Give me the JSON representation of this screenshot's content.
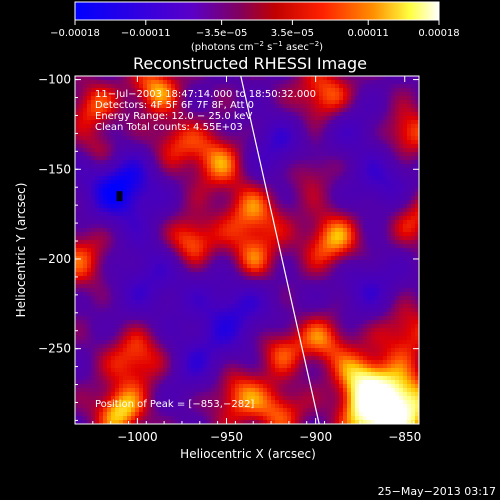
{
  "chart_data": {
    "type": "heatmap",
    "title": "Reconstructed RHESSI Image",
    "xlabel": "Heliocentric X (arcsec)",
    "ylabel": "Heliocentric Y (arcsec)",
    "xlim": [
      -1035,
      -842
    ],
    "ylim": [
      -292,
      -98
    ],
    "x_ticks": [
      -1000,
      -950,
      -900,
      -850
    ],
    "y_ticks": [
      -100,
      -150,
      -200,
      -250
    ],
    "x_tick_labels": [
      "−1000",
      "−950",
      "−900",
      "−850"
    ],
    "y_tick_labels": [
      "−100",
      "−150",
      "−200",
      "−250"
    ],
    "colorbar": {
      "range": [
        -0.00018,
        0.00018
      ],
      "ticks": [
        -0.00018,
        -0.00011,
        -3.5e-05,
        3.5e-05,
        0.00011,
        0.00018
      ],
      "tick_labels": [
        "−0.00018",
        "−0.00011",
        "−3.5e−05",
        "3.5e−05",
        "0.00011",
        "0.00018"
      ],
      "unit_main": "(photons cm",
      "unit_exp1": "−2",
      "unit_mid": " s",
      "unit_exp2": "−1",
      "unit_end": " asec",
      "unit_exp3": "−2",
      "unit_close": ")",
      "colors": [
        "#0000ff",
        "#5a00c8",
        "#ff0000",
        "#ff7800",
        "#ffff00",
        "#ffffff"
      ]
    },
    "annotations": [
      "11−Jul−2003 18:47:14.000 to 18:50:32.000",
      "Detectors: 4F 5F 6F 7F 8F, Att 0",
      "Energy Range: 12.0 − 25.0 keV",
      "Clean    Total counts: 4.55E+03"
    ],
    "peak_label": "Position of Peak = [−853,−282]",
    "peak": [
      -853,
      -282
    ],
    "limb_line": [
      [
        -942,
        -98
      ],
      [
        -898,
        -292
      ]
    ],
    "grid": false
  },
  "footer_date": "25−May−2013 03:17"
}
